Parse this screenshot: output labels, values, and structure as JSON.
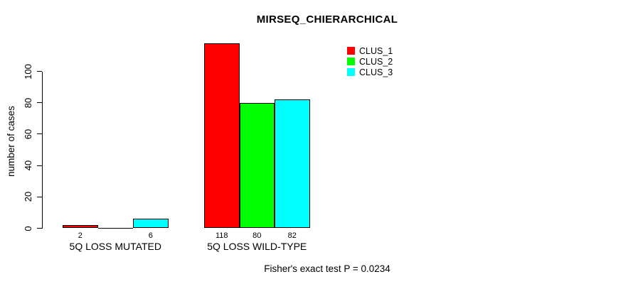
{
  "chart_data": {
    "type": "bar",
    "title": "MIRSEQ_CHIERARCHICAL",
    "ylabel": "number of cases",
    "xlabel": "",
    "categories": [
      "5Q LOSS MUTATED",
      "5Q LOSS WILD-TYPE"
    ],
    "series": [
      {
        "name": "CLUS_1",
        "color": "#ff0000",
        "values": [
          2,
          118
        ]
      },
      {
        "name": "CLUS_2",
        "color": "#00ff00",
        "values": [
          0,
          80
        ]
      },
      {
        "name": "CLUS_3",
        "color": "#00ffff",
        "values": [
          6,
          82
        ]
      }
    ],
    "bar_value_labels": [
      [
        "2",
        "",
        "6"
      ],
      [
        "118",
        "80",
        "82"
      ]
    ],
    "yticks": [
      0,
      20,
      40,
      60,
      80,
      100
    ],
    "ylim": [
      0,
      120
    ],
    "grid": false,
    "legend_position": "top-right",
    "annotation": "Fisher's exact test P = 0.0234",
    "colors": {
      "axis": "#000000",
      "background": "#ffffff"
    }
  }
}
